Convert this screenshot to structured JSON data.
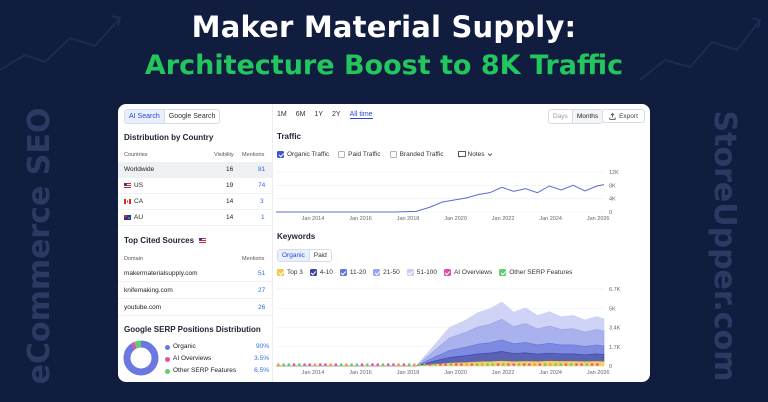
{
  "headline": {
    "line1": "Maker Material Supply:",
    "line2": "Architecture Boost to 8K Traffic"
  },
  "side_text": {
    "left": "eCommerce SEO",
    "right": "StoreUpper.com"
  },
  "colors": {
    "background": "#111d3f",
    "headline_accent": "#22c55e",
    "traffic_line": "#5b6bd8",
    "link": "#2b6ee8"
  },
  "search_toggle": {
    "options": [
      "AI Search",
      "Google Search"
    ],
    "selected": "AI Search"
  },
  "distribution": {
    "title": "Distribution by Country",
    "columns": [
      "Countries",
      "Visibility",
      "Mentions"
    ],
    "rows": [
      {
        "country": "Worldwide",
        "flag": "",
        "visibility": "16",
        "mentions": "81"
      },
      {
        "country": "US",
        "flag": "us-flag-icon",
        "visibility": "19",
        "mentions": "74"
      },
      {
        "country": "CA",
        "flag": "ca-flag-icon",
        "visibility": "14",
        "mentions": "3"
      },
      {
        "country": "AU",
        "flag": "au-flag-icon",
        "visibility": "14",
        "mentions": "1"
      }
    ]
  },
  "cited_sources": {
    "title": "Top Cited Sources",
    "columns": [
      "Domain",
      "Mentions"
    ],
    "rows": [
      {
        "domain": "makermaterialsupply.com",
        "mentions": "51"
      },
      {
        "domain": "knifemaking.com",
        "mentions": "27"
      },
      {
        "domain": "youtube.com",
        "mentions": "26"
      }
    ]
  },
  "serp_distribution": {
    "title": "Google SERP Positions Distribution",
    "items": [
      {
        "label": "Organic",
        "value": "90%",
        "fraction": 0.9,
        "color": "#6b78e0"
      },
      {
        "label": "AI Overviews",
        "value": "3.5%",
        "fraction": 0.035,
        "color": "#e24fa8"
      },
      {
        "label": "Other SERP Features",
        "value": "6.5%",
        "fraction": 0.065,
        "color": "#5fcf6b"
      }
    ]
  },
  "range_tabs": {
    "options": [
      "1M",
      "6M",
      "1Y",
      "2Y",
      "All time"
    ],
    "selected": "All time"
  },
  "granularity": {
    "options": [
      "Days",
      "Months"
    ],
    "selected": "Months"
  },
  "export_label": "Export",
  "traffic": {
    "title": "Traffic",
    "checkboxes": [
      {
        "label": "Organic Traffic",
        "checked": true
      },
      {
        "label": "Paid Traffic",
        "checked": false
      },
      {
        "label": "Branded Traffic",
        "checked": false
      }
    ],
    "notes_label": "Notes"
  },
  "keywords": {
    "title": "Keywords",
    "toggle": [
      "Organic",
      "Paid"
    ],
    "selected": "Organic",
    "legend": [
      {
        "label": "Top 3",
        "color": "#f2c94c",
        "checked": true
      },
      {
        "label": "4-10",
        "color": "#3d46a8",
        "checked": true
      },
      {
        "label": "11-20",
        "color": "#6675dc",
        "checked": true
      },
      {
        "label": "21-50",
        "color": "#9aa4ea",
        "checked": true
      },
      {
        "label": "51-100",
        "color": "#c7cdf4",
        "checked": true
      },
      {
        "label": "AI Overviews",
        "color": "#e24fa8",
        "checked": true
      },
      {
        "label": "Other SERP Features",
        "color": "#5fcf6b",
        "checked": true
      }
    ]
  },
  "chart_data": [
    {
      "type": "line",
      "title": "Traffic",
      "x_ticks": [
        "Jan 2014",
        "Jan 2016",
        "Jan 2018",
        "Jan 2020",
        "Jan 2022",
        "Jan 2024",
        "Jan 2026"
      ],
      "y_ticks": [
        "0",
        "4K",
        "8K",
        "12K"
      ],
      "ylim": [
        0,
        12000
      ],
      "grid": true,
      "series": [
        {
          "name": "Organic Traffic",
          "x": [
            2012.5,
            2014,
            2016,
            2017.5,
            2018.4,
            2019.0,
            2019.5,
            2020.0,
            2020.5,
            2021.0,
            2021.5,
            2022.0,
            2022.5,
            2023.0,
            2023.5,
            2024.0,
            2024.5,
            2025.0,
            2025.5,
            2026.0,
            2026.3
          ],
          "values": [
            0,
            0,
            0,
            0,
            200,
            1500,
            3000,
            3600,
            4200,
            5200,
            5800,
            7400,
            6200,
            7000,
            5800,
            7800,
            6600,
            8000,
            6300,
            7800,
            8200
          ]
        }
      ]
    },
    {
      "type": "area",
      "title": "Keywords",
      "x_ticks": [
        "Jan 2014",
        "Jan 2016",
        "Jan 2018",
        "Jan 2020",
        "Jan 2022",
        "Jan 2024",
        "Jan 2026"
      ],
      "y_ticks": [
        "0",
        "1.7K",
        "3.4K",
        "5K",
        "6.7K"
      ],
      "ylim": [
        0,
        6700
      ],
      "grid": true,
      "stacked": true,
      "x": [
        2012.5,
        2018.4,
        2019.2,
        2019.8,
        2020.5,
        2021.0,
        2021.5,
        2022.0,
        2022.5,
        2023.0,
        2023.5,
        2024.0,
        2024.5,
        2025.0,
        2025.5,
        2026.0,
        2026.3
      ],
      "series": [
        {
          "name": "Top 3",
          "values": [
            0,
            0,
            150,
            250,
            300,
            350,
            380,
            420,
            380,
            400,
            380,
            420,
            400,
            400,
            380,
            400,
            380
          ]
        },
        {
          "name": "4-10",
          "values": [
            0,
            0,
            300,
            500,
            600,
            700,
            750,
            850,
            700,
            750,
            650,
            700,
            650,
            650,
            600,
            650,
            620
          ]
        },
        {
          "name": "11-20",
          "values": [
            0,
            0,
            350,
            600,
            750,
            850,
            900,
            1000,
            850,
            900,
            800,
            850,
            780,
            800,
            720,
            780,
            740
          ]
        },
        {
          "name": "21-50",
          "values": [
            0,
            0,
            600,
            1100,
            1300,
            1500,
            1600,
            1800,
            1500,
            1650,
            1400,
            1500,
            1350,
            1400,
            1250,
            1350,
            1300
          ]
        },
        {
          "name": "51-100",
          "values": [
            0,
            0,
            500,
            900,
            1050,
            1250,
            1350,
            1500,
            1250,
            1350,
            1150,
            1250,
            1100,
            1150,
            1050,
            1120,
            1060
          ]
        }
      ]
    }
  ]
}
